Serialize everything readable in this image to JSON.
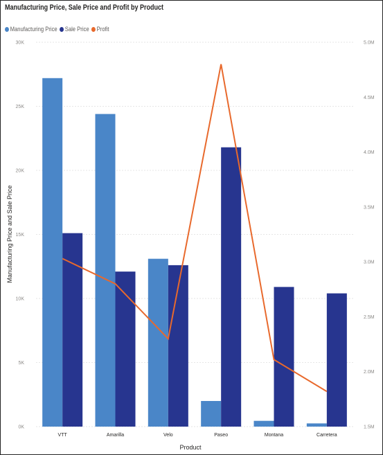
{
  "chart_data": {
    "type": "bar",
    "title": "Manufacturing Price, Sale Price and Profit by Product",
    "xlabel": "Product",
    "ylabel": "Manufacturing Price and Sale Price",
    "categories": [
      "VTT",
      "Amarilla",
      "Velo",
      "Paseo",
      "Montana",
      "Carretera"
    ],
    "series": [
      {
        "name": "Manufacturing Price",
        "type": "bar",
        "axis": "left",
        "color": "#4a86c8",
        "values": [
          27200,
          24400,
          13100,
          2000,
          450,
          250
        ]
      },
      {
        "name": "Sale Price",
        "type": "bar",
        "axis": "left",
        "color": "#27358f",
        "values": [
          15100,
          12100,
          12600,
          21800,
          10900,
          10400
        ]
      },
      {
        "name": "Profit",
        "type": "line",
        "axis": "right",
        "color": "#e8692c",
        "values": [
          3030000,
          2800000,
          2300000,
          4800000,
          2110000,
          1820000
        ]
      }
    ],
    "ylim": [
      0,
      30000
    ],
    "y2lim": [
      1500000,
      5000000
    ],
    "y_ticks": [
      "0K",
      "5K",
      "10K",
      "15K",
      "20K",
      "25K",
      "30K"
    ],
    "y2_ticks": [
      "1.5M",
      "2.0M",
      "2.5M",
      "3.0M",
      "3.5M",
      "4.0M",
      "4.5M",
      "5.0M"
    ],
    "grid": true,
    "legend": "top-left"
  }
}
